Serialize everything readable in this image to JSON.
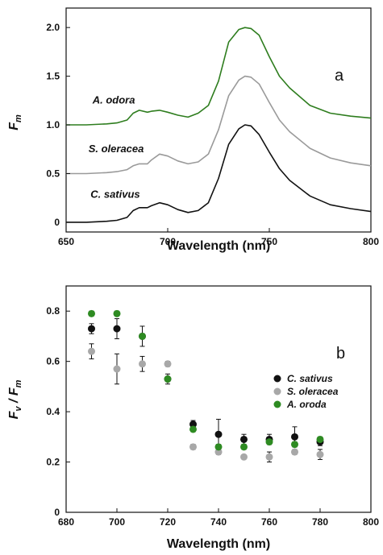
{
  "chart_data": [
    {
      "type": "line",
      "panel_label": "a",
      "xlabel": "Wavelength (nm)",
      "ylabel": "F",
      "ylabel_sub": "m",
      "xlim": [
        650,
        800
      ],
      "ylim": [
        -0.1,
        2.2
      ],
      "xticks": [
        650,
        700,
        750,
        800
      ],
      "yticks": [
        0,
        0.5,
        1.0,
        1.5,
        2.0
      ],
      "ytick_labels": [
        "0",
        "0.5",
        "1.0",
        "1.5",
        "2.0"
      ],
      "grid": false,
      "series": [
        {
          "name": "C. sativus",
          "color": "#111111",
          "x": [
            650,
            660,
            670,
            675,
            680,
            683,
            686,
            690,
            692,
            696,
            700,
            705,
            710,
            715,
            720,
            725,
            730,
            735,
            738,
            741,
            745,
            750,
            755,
            760,
            770,
            780,
            790,
            800
          ],
          "y": [
            0.0,
            0.0,
            0.01,
            0.02,
            0.05,
            0.12,
            0.15,
            0.15,
            0.17,
            0.2,
            0.18,
            0.13,
            0.1,
            0.12,
            0.2,
            0.45,
            0.8,
            0.96,
            1.0,
            0.99,
            0.9,
            0.72,
            0.55,
            0.43,
            0.27,
            0.18,
            0.14,
            0.11
          ]
        },
        {
          "name": "S. oleracea",
          "color": "#9a9a9a",
          "x": [
            650,
            660,
            670,
            675,
            680,
            683,
            686,
            690,
            692,
            696,
            700,
            705,
            710,
            715,
            720,
            725,
            730,
            735,
            738,
            741,
            745,
            750,
            755,
            760,
            770,
            780,
            790,
            800
          ],
          "y": [
            0.5,
            0.5,
            0.51,
            0.52,
            0.54,
            0.58,
            0.6,
            0.6,
            0.64,
            0.7,
            0.68,
            0.63,
            0.6,
            0.62,
            0.7,
            0.95,
            1.3,
            1.46,
            1.5,
            1.49,
            1.42,
            1.23,
            1.05,
            0.93,
            0.76,
            0.66,
            0.61,
            0.58
          ]
        },
        {
          "name": "A. odora",
          "color": "#2e7d1e",
          "x": [
            650,
            660,
            670,
            675,
            680,
            683,
            686,
            690,
            692,
            696,
            700,
            705,
            710,
            715,
            720,
            725,
            730,
            735,
            738,
            741,
            745,
            750,
            755,
            760,
            770,
            780,
            790,
            800
          ],
          "y": [
            1.0,
            1.0,
            1.01,
            1.02,
            1.05,
            1.12,
            1.15,
            1.13,
            1.14,
            1.15,
            1.13,
            1.1,
            1.08,
            1.12,
            1.2,
            1.45,
            1.85,
            1.98,
            2.0,
            1.99,
            1.92,
            1.7,
            1.5,
            1.38,
            1.2,
            1.12,
            1.09,
            1.07
          ]
        }
      ],
      "annotations": [
        {
          "text": "A. odora",
          "x": 663,
          "y": 1.22
        },
        {
          "text": "S. oleracea",
          "x": 661,
          "y": 0.72
        },
        {
          "text": "C. sativus",
          "x": 662,
          "y": 0.25
        }
      ]
    },
    {
      "type": "scatter",
      "panel_label": "b",
      "xlabel": "Wavelength (nm)",
      "ylabel": "F",
      "ylabel_sub": "v",
      "ylabel_mid": " / F",
      "ylabel_sub2": "m",
      "xlim": [
        680,
        800
      ],
      "ylim": [
        0,
        0.9
      ],
      "xticks": [
        680,
        700,
        720,
        740,
        760,
        780,
        800
      ],
      "yticks": [
        0,
        0.2,
        0.4,
        0.6,
        0.8
      ],
      "ytick_labels": [
        "0",
        "0.2",
        "0.4",
        "0.6",
        "0.8"
      ],
      "grid": false,
      "legend_position": "right",
      "series": [
        {
          "name": "C. sativus",
          "color": "#111111",
          "x": [
            690,
            700,
            710,
            720,
            730,
            740,
            750,
            760,
            770,
            780
          ],
          "y": [
            0.73,
            0.73,
            0.7,
            0.53,
            0.35,
            0.31,
            0.29,
            0.29,
            0.3,
            0.28
          ],
          "err": [
            0.02,
            0.04,
            0.04,
            0.02,
            0.015,
            0.06,
            0.02,
            0.02,
            0.04,
            0.015
          ]
        },
        {
          "name": "S. oleracea",
          "color": "#a8a8a8",
          "x": [
            690,
            700,
            710,
            720,
            730,
            740,
            750,
            760,
            770,
            780
          ],
          "y": [
            0.64,
            0.57,
            0.59,
            0.59,
            0.26,
            0.24,
            0.22,
            0.22,
            0.24,
            0.23
          ],
          "err": [
            0.03,
            0.06,
            0.03,
            0.01,
            0.01,
            0.01,
            0.005,
            0.02,
            0.01,
            0.02
          ]
        },
        {
          "name": "A. oroda",
          "color": "#2e8b22",
          "x": [
            690,
            700,
            710,
            720,
            730,
            740,
            750,
            760,
            770,
            780
          ],
          "y": [
            0.79,
            0.79,
            0.7,
            0.53,
            0.33,
            0.26,
            0.26,
            0.28,
            0.27,
            0.29
          ],
          "err": [
            0.01,
            0.01,
            0.01,
            0.01,
            0.01,
            0.01,
            0.01,
            0.01,
            0.01,
            0.01
          ]
        }
      ]
    }
  ]
}
